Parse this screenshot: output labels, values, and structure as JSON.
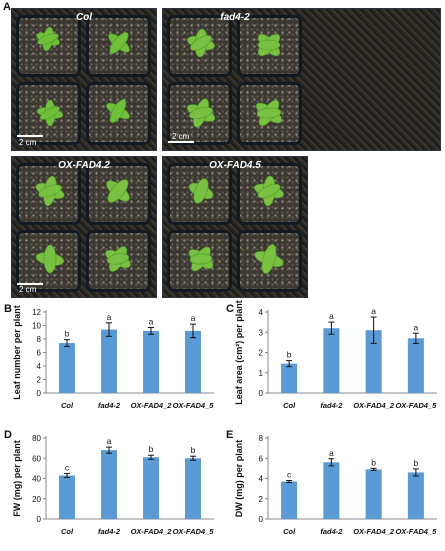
{
  "figure": {
    "panel_a_label": "A",
    "photos": [
      {
        "title": "Col",
        "scale_label": "2 cm"
      },
      {
        "title": "fad4-2",
        "scale_label": "2 cm"
      },
      {
        "title": "OX-FAD4.2",
        "scale_label": "2 cm"
      },
      {
        "title": "OX-FAD4.5",
        "scale_label": ""
      }
    ]
  },
  "chart_data": [
    {
      "panel": "B",
      "type": "bar",
      "categories": [
        "Col",
        "fad4-2",
        "OX-FAD4_2",
        "OX-FAD4_5"
      ],
      "values": [
        7.4,
        9.4,
        9.2,
        9.2
      ],
      "errors": [
        0.5,
        1.0,
        0.5,
        1.0
      ],
      "letters": [
        "b",
        "a",
        "a",
        "a"
      ],
      "ylabel": "Leaf number per plant",
      "ylim": [
        0,
        12
      ],
      "yticks": [
        0,
        2,
        4,
        6,
        8,
        10,
        12
      ],
      "color": "#5b9bd5"
    },
    {
      "panel": "C",
      "type": "bar",
      "categories": [
        "Col",
        "fad4-2",
        "OX-FAD4_2",
        "OX-FAD4_5"
      ],
      "values": [
        1.45,
        3.2,
        3.1,
        2.7
      ],
      "errors": [
        0.15,
        0.3,
        0.65,
        0.25
      ],
      "letters": [
        "b",
        "a",
        "a",
        "a"
      ],
      "ylabel": "Leaf area (cm²) per plant",
      "ylim": [
        0,
        4
      ],
      "yticks": [
        0,
        1,
        2,
        3,
        4
      ],
      "color": "#5b9bd5"
    },
    {
      "panel": "D",
      "type": "bar",
      "categories": [
        "Col",
        "fad4-2",
        "OX-FAD4_2",
        "OX-FAD4_5"
      ],
      "values": [
        43,
        68,
        61,
        60
      ],
      "errors": [
        2,
        3,
        2,
        2
      ],
      "letters": [
        "c",
        "a",
        "b",
        "b"
      ],
      "ylabel": "FW (mg) per plant",
      "ylim": [
        0,
        80
      ],
      "yticks": [
        0,
        20,
        40,
        60,
        80
      ],
      "color": "#5b9bd5"
    },
    {
      "panel": "E",
      "type": "bar",
      "categories": [
        "Col",
        "fad4-2",
        "OX-FAD4_2",
        "OX-FAD4_5"
      ],
      "values": [
        3.7,
        5.6,
        4.9,
        4.6
      ],
      "errors": [
        0.1,
        0.35,
        0.1,
        0.35
      ],
      "letters": [
        "c",
        "a",
        "b",
        "b"
      ],
      "ylabel": "DW (mg) per plant",
      "ylim": [
        0,
        8
      ],
      "yticks": [
        0,
        2,
        4,
        6,
        8
      ],
      "color": "#5b9bd5"
    }
  ]
}
